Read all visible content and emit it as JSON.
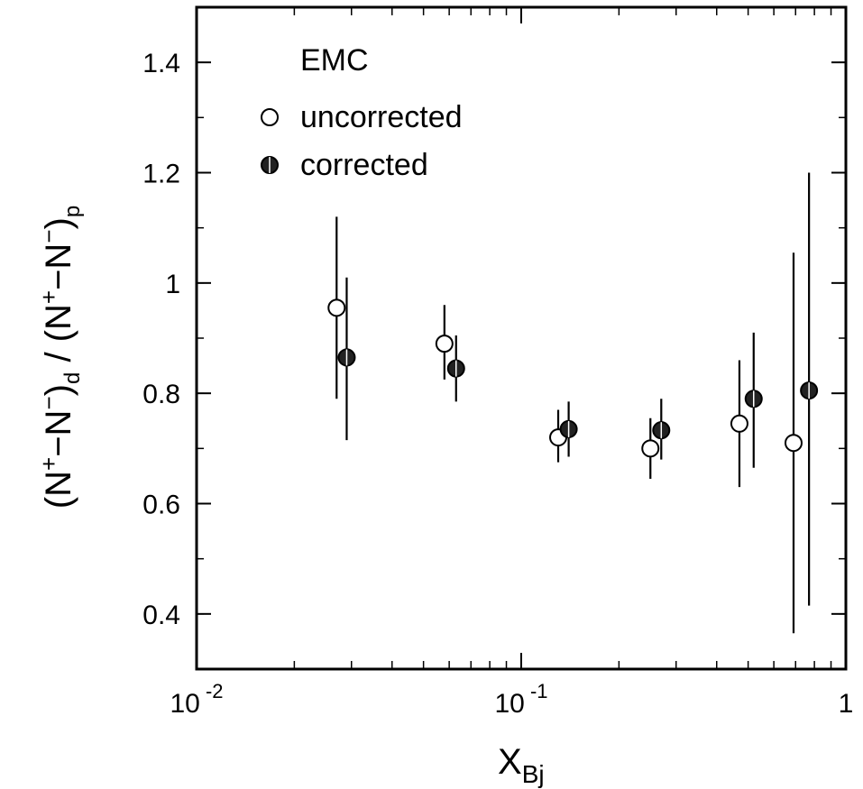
{
  "chart_data": {
    "type": "scatter",
    "title": "",
    "xlabel": "X",
    "xlabel_sub": "Bj",
    "ylabel": "(N+−N−)d / (N+−N−)p",
    "ylabel_parts": {
      "open": "(N",
      "sup1": "+",
      "mid1": "−N",
      "sup2": "−",
      "close1": ")",
      "sub1": "d",
      "slash": " / ",
      "open2": "(N",
      "sup3": "+",
      "mid2": "−N",
      "sup4": "−",
      "close2": ")",
      "sub2": "p"
    },
    "x_scale": "log",
    "xlim": [
      0.01,
      1
    ],
    "ylim": [
      0.3,
      1.5
    ],
    "x_ticks": [
      {
        "value": 0.01,
        "base": "10",
        "exp": "-2"
      },
      {
        "value": 0.1,
        "base": "10",
        "exp": "-1"
      },
      {
        "value": 1,
        "base": "1",
        "exp": ""
      }
    ],
    "y_ticks": [
      {
        "value": 0.4,
        "label": "0.4"
      },
      {
        "value": 0.6,
        "label": "0.6"
      },
      {
        "value": 0.8,
        "label": "0.8"
      },
      {
        "value": 1.0,
        "label": "1"
      },
      {
        "value": 1.2,
        "label": "1.2"
      },
      {
        "value": 1.4,
        "label": "1.4"
      }
    ],
    "grid": false,
    "legend_title": "EMC",
    "legend_position": "top-left",
    "series": [
      {
        "name": "uncorrected",
        "marker": "open-circle",
        "x": [
          0.027,
          0.058,
          0.13,
          0.25,
          0.47,
          0.69
        ],
        "y": [
          0.955,
          0.89,
          0.72,
          0.7,
          0.745,
          0.71
        ],
        "y_low": [
          0.79,
          0.825,
          0.675,
          0.645,
          0.63,
          0.365
        ],
        "y_high": [
          1.12,
          0.96,
          0.77,
          0.755,
          0.86,
          1.055
        ]
      },
      {
        "name": "corrected",
        "marker": "filled-circle",
        "x": [
          0.029,
          0.063,
          0.14,
          0.27,
          0.52,
          0.77
        ],
        "y": [
          0.865,
          0.845,
          0.735,
          0.733,
          0.79,
          0.805
        ],
        "y_low": [
          0.715,
          0.785,
          0.685,
          0.68,
          0.665,
          0.415
        ],
        "y_high": [
          1.01,
          0.905,
          0.785,
          0.79,
          0.91,
          1.2
        ]
      }
    ]
  },
  "legend": {
    "title": "EMC",
    "items": [
      "uncorrected",
      "corrected"
    ]
  }
}
